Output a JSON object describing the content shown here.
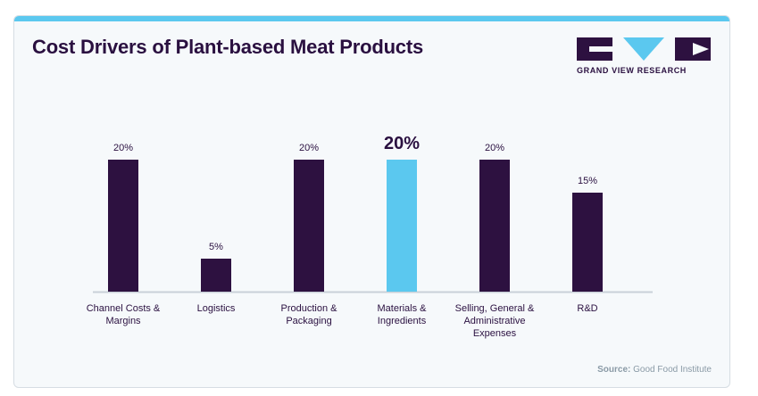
{
  "title": "Cost Drivers of Plant-based Meat Products",
  "logo": {
    "text": "GRAND VIEW RESEARCH",
    "icon": "grand-view-research-logo"
  },
  "source": {
    "label": "Source:",
    "text": "Good Food Institute"
  },
  "colors": {
    "bar": "#2d1140",
    "highlight": "#5bc8ef",
    "accent": "#5bc8ef",
    "title": "#2a1040"
  },
  "chart_data": {
    "type": "bar",
    "title": "Cost Drivers of Plant-based Meat Products",
    "categories": [
      [
        "Channel Costs &",
        "Margins"
      ],
      [
        "Logistics"
      ],
      [
        "Production &",
        "Packaging"
      ],
      [
        "Materials &",
        "Ingredients"
      ],
      [
        "Selling, General &",
        "Administrative",
        "Expenses"
      ],
      [
        "R&D"
      ]
    ],
    "values": [
      20,
      5,
      20,
      20,
      20,
      15
    ],
    "labels": [
      "20%",
      "5%",
      "20%",
      "20%",
      "20%",
      "15%"
    ],
    "highlight_index": 3,
    "ylim": [
      0,
      20
    ],
    "grid": false,
    "xlabel": "",
    "ylabel": ""
  }
}
